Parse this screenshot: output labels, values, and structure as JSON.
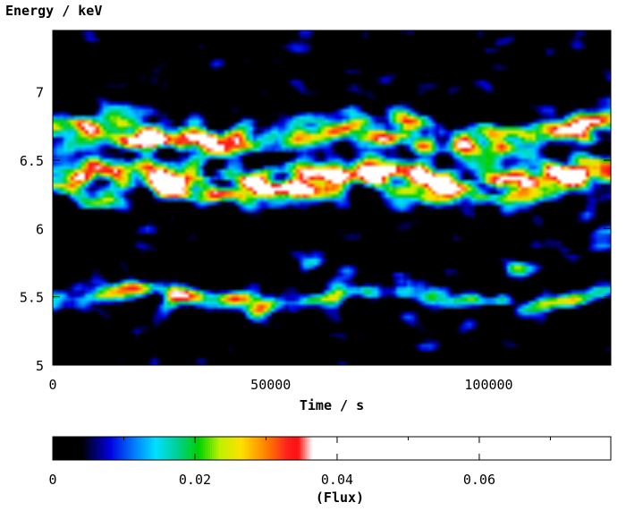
{
  "chart_data": [
    {
      "type": "heatmap",
      "title": "",
      "xlabel": "Time / s",
      "ylabel": "Energy / keV",
      "xlim": [
        0,
        128000
      ],
      "ylim": [
        5.0,
        7.45
      ],
      "x_ticks": [
        0,
        50000,
        100000
      ],
      "y_ticks": [
        5,
        5.5,
        6,
        6.5,
        7
      ],
      "x_tick_labels": [
        "0",
        "50000",
        "100000"
      ],
      "y_tick_labels": [
        "5",
        "5.5",
        "6",
        "6.5",
        "7"
      ],
      "background_color": "#000000",
      "features": [
        {
          "name": "main-band-6.35keV",
          "t_start": 0,
          "t_end": 128000,
          "energy_center": 6.35,
          "energy_width": 0.12,
          "peak_flux": 0.04
        },
        {
          "name": "upper-band-6.7keV",
          "t_start": 0,
          "t_end": 128000,
          "energy_center": 6.68,
          "energy_width": 0.12,
          "peak_flux": 0.03
        },
        {
          "name": "low-band-5.5keV",
          "t_start": 0,
          "t_end": 128000,
          "energy_center": 5.5,
          "energy_width": 0.08,
          "peak_flux": 0.02
        }
      ],
      "hotspots": [
        {
          "t": 22000,
          "energy": 6.65,
          "flux": 0.05
        },
        {
          "t": 12000,
          "energy": 6.2,
          "flux": 0.045
        },
        {
          "t": 27000,
          "energy": 6.3,
          "flux": 0.045
        },
        {
          "t": 59000,
          "energy": 6.27,
          "flux": 0.04
        },
        {
          "t": 88000,
          "energy": 6.35,
          "flux": 0.045
        },
        {
          "t": 80000,
          "energy": 6.82,
          "flux": 0.04
        },
        {
          "t": 118000,
          "energy": 6.43,
          "flux": 0.045
        },
        {
          "t": 27000,
          "energy": 5.47,
          "flux": 0.04
        },
        {
          "t": 58000,
          "energy": 5.8,
          "flux": 0.035
        },
        {
          "t": 107000,
          "energy": 5.7,
          "flux": 0.04
        },
        {
          "t": 1500,
          "energy": 6.8,
          "flux": 0.035
        }
      ]
    },
    {
      "type": "colorbar",
      "xlabel": "(Flux)",
      "xlim": [
        0,
        0.0785
      ],
      "x_ticks": [
        0,
        0.02,
        0.04,
        0.06
      ],
      "x_tick_labels": [
        "0",
        "0.02",
        "0.04",
        "0.06"
      ],
      "colormap": [
        {
          "value": 0.0,
          "color": "#000000"
        },
        {
          "value": 0.004,
          "color": "#000000"
        },
        {
          "value": 0.008,
          "color": "#0000e0"
        },
        {
          "value": 0.012,
          "color": "#0090ff"
        },
        {
          "value": 0.0145,
          "color": "#00e0ff"
        },
        {
          "value": 0.0175,
          "color": "#00d090"
        },
        {
          "value": 0.0205,
          "color": "#00d000"
        },
        {
          "value": 0.0235,
          "color": "#c0f000"
        },
        {
          "value": 0.0265,
          "color": "#ffe000"
        },
        {
          "value": 0.03,
          "color": "#ff8000"
        },
        {
          "value": 0.033,
          "color": "#ff2020"
        },
        {
          "value": 0.0345,
          "color": "#ff1010"
        },
        {
          "value": 0.0365,
          "color": "#ffffff"
        },
        {
          "value": 0.0785,
          "color": "#ffffff"
        }
      ]
    }
  ]
}
